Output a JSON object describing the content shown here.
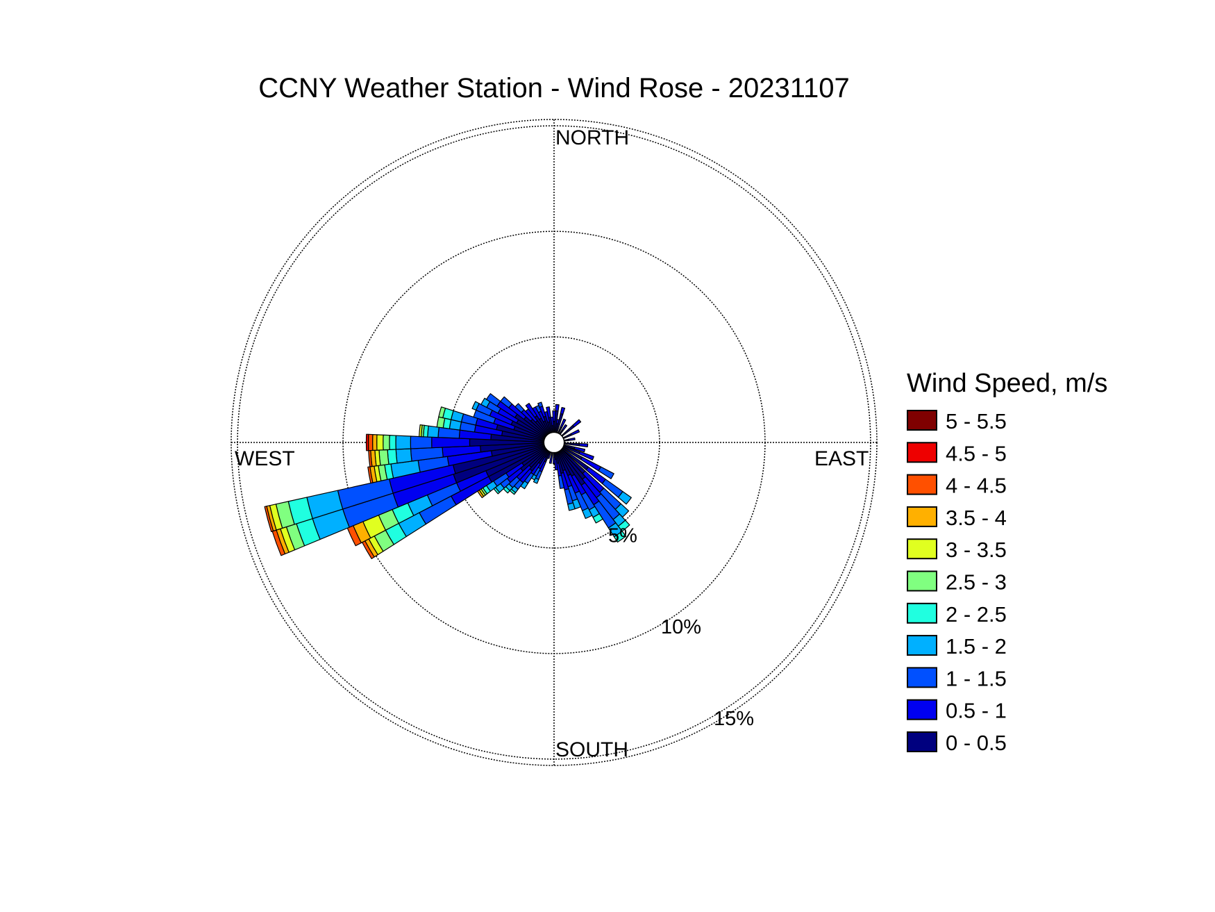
{
  "chart_data": {
    "type": "wind-rose",
    "title": "CCNY Weather Station - Wind Rose - 20231107",
    "direction_labels": {
      "north": "NORTH",
      "east": "EAST",
      "south": "SOUTH",
      "west": "WEST"
    },
    "ring_percentages": [
      5,
      10,
      15
    ],
    "ring_labels": [
      "5%",
      "10%",
      "15%"
    ],
    "max_radius_percent": 15.3,
    "calm_circle_percent": 0.45,
    "grid": true,
    "legend": {
      "title": "Wind Speed, m/s",
      "position": "right",
      "bins": [
        {
          "label": "5 - 5.5",
          "color": "#7f0000"
        },
        {
          "label": "4.5 - 5",
          "color": "#ee0000"
        },
        {
          "label": "4 - 4.5",
          "color": "#ff5000"
        },
        {
          "label": "3.5 - 4",
          "color": "#ffb000"
        },
        {
          "label": "3 - 3.5",
          "color": "#e0ff20"
        },
        {
          "label": "2.5 - 3",
          "color": "#80ff80"
        },
        {
          "label": "2 - 2.5",
          "color": "#20ffe0"
        },
        {
          "label": "1.5 - 2",
          "color": "#00b0ff"
        },
        {
          "label": "1 - 1.5",
          "color": "#0050ff"
        },
        {
          "label": "0.5 - 1",
          "color": "#0000f0"
        },
        {
          "label": "0 - 0.5",
          "color": "#00007f"
        }
      ]
    },
    "bin_order_inner_to_outer": [
      "0 - 0.5",
      "0.5 - 1",
      "1 - 1.5",
      "1.5 - 2",
      "2 - 2.5",
      "2.5 - 3",
      "3 - 3.5",
      "3.5 - 4",
      "4 - 4.5",
      "4.5 - 5",
      "5 - 5.5"
    ],
    "sector_width_deg": 5,
    "sectors": [
      {
        "direction_deg": 0,
        "cumulative_percent": [
          1.0,
          1.5
        ]
      },
      {
        "direction_deg": 5,
        "cumulative_percent": [
          1.5,
          1.8
        ]
      },
      {
        "direction_deg": 10,
        "cumulative_percent": [
          0.9,
          1.1
        ]
      },
      {
        "direction_deg": 15,
        "cumulative_percent": [
          1.4,
          1.7
        ]
      },
      {
        "direction_deg": 25,
        "cumulative_percent": [
          0.8,
          1.2
        ]
      },
      {
        "direction_deg": 35,
        "cumulative_percent": [
          0.7,
          1.0
        ]
      },
      {
        "direction_deg": 50,
        "cumulative_percent": [
          1.2,
          1.6
        ]
      },
      {
        "direction_deg": 65,
        "cumulative_percent": [
          0.9,
          1.3
        ]
      },
      {
        "direction_deg": 80,
        "cumulative_percent": [
          0.7,
          1.0
        ]
      },
      {
        "direction_deg": 95,
        "cumulative_percent": [
          1.2,
          1.6
        ]
      },
      {
        "direction_deg": 105,
        "cumulative_percent": [
          1.0,
          1.5
        ]
      },
      {
        "direction_deg": 112,
        "cumulative_percent": [
          1.3,
          2.0
        ]
      },
      {
        "direction_deg": 120,
        "cumulative_percent": [
          1.5,
          2.5,
          3.2
        ]
      },
      {
        "direction_deg": 128,
        "cumulative_percent": [
          2.0,
          3.0,
          4.0,
          4.5
        ]
      },
      {
        "direction_deg": 135,
        "cumulative_percent": [
          2.0,
          3.2,
          4.3,
          4.8
        ]
      },
      {
        "direction_deg": 140,
        "cumulative_percent": [
          2.2,
          3.3,
          4.6,
          5.0,
          5.3
        ]
      },
      {
        "direction_deg": 145,
        "cumulative_percent": [
          2.4,
          3.5,
          4.8,
          5.3,
          5.6
        ]
      },
      {
        "direction_deg": 150,
        "cumulative_percent": [
          1.8,
          2.8,
          3.6,
          4.0,
          4.3
        ]
      },
      {
        "direction_deg": 155,
        "cumulative_percent": [
          1.7,
          2.6,
          3.5,
          3.9
        ]
      },
      {
        "direction_deg": 160,
        "cumulative_percent": [
          1.4,
          2.2,
          2.9,
          3.3
        ]
      },
      {
        "direction_deg": 165,
        "cumulative_percent": [
          1.5,
          2.3,
          3.0,
          3.3
        ]
      },
      {
        "direction_deg": 170,
        "cumulative_percent": [
          1.0,
          1.6,
          2.2
        ]
      },
      {
        "direction_deg": 175,
        "cumulative_percent": [
          0.8,
          1.3
        ]
      },
      {
        "direction_deg": 180,
        "cumulative_percent": [
          0.7,
          1.0
        ]
      },
      {
        "direction_deg": 190,
        "cumulative_percent": [
          0.6,
          1.0
        ]
      },
      {
        "direction_deg": 200,
        "cumulative_percent": [
          0.5,
          0.8
        ]
      },
      {
        "direction_deg": 205,
        "cumulative_percent": [
          1.0,
          1.5,
          1.9,
          2.1
        ]
      },
      {
        "direction_deg": 210,
        "cumulative_percent": [
          0.8,
          1.4,
          1.8,
          2.0
        ]
      },
      {
        "direction_deg": 215,
        "cumulative_percent": [
          1.2,
          1.8,
          2.3,
          2.6
        ]
      },
      {
        "direction_deg": 220,
        "cumulative_percent": [
          1.7,
          2.4,
          2.8,
          3.0,
          3.1
        ]
      },
      {
        "direction_deg": 225,
        "cumulative_percent": [
          1.6,
          2.4,
          2.9,
          3.1,
          3.25
        ]
      },
      {
        "direction_deg": 230,
        "cumulative_percent": [
          2.0,
          2.8,
          3.2,
          3.5,
          3.6
        ]
      },
      {
        "direction_deg": 235,
        "cumulative_percent": [
          1.8,
          2.7,
          3.4,
          3.8,
          4.0,
          4.1,
          4.2,
          4.3
        ]
      },
      {
        "direction_deg": 240,
        "cumulative_percent": [
          3.5,
          5.5,
          7.2,
          8.3,
          9.0,
          9.6,
          9.9,
          10.1,
          10.25
        ]
      },
      {
        "direction_deg": 245,
        "cumulative_percent": [
          3.5,
          5.0,
          6.5,
          7.5,
          8.3,
          9.0,
          9.8,
          10.3,
          10.6
        ]
      },
      {
        "direction_deg": 250,
        "cumulative_percent": [
          5.0,
          8.0,
          10.5,
          12.0,
          12.8,
          13.3,
          13.6,
          13.8,
          14.0
        ]
      },
      {
        "direction_deg": 255,
        "cumulative_percent": [
          4.9,
          8.0,
          10.5,
          12.0,
          12.9,
          13.5,
          13.8,
          13.95,
          14.05
        ]
      },
      {
        "direction_deg": 260,
        "cumulative_percent": [
          3.0,
          5.1,
          6.5,
          7.8,
          8.1,
          8.4,
          8.6,
          8.8,
          8.9
        ]
      },
      {
        "direction_deg": 265,
        "cumulative_percent": [
          3.5,
          5.3,
          6.8,
          7.5,
          7.9,
          8.3,
          8.5,
          8.7,
          8.8
        ]
      },
      {
        "direction_deg": 270,
        "cumulative_percent": [
          4.0,
          5.8,
          6.8,
          7.5,
          7.8,
          8.1,
          8.4,
          8.6,
          8.8,
          8.9
        ]
      },
      {
        "direction_deg": 275,
        "cumulative_percent": [
          3.0,
          4.5,
          5.5,
          6.0,
          6.2,
          6.3,
          6.4
        ]
      },
      {
        "direction_deg": 280,
        "cumulative_percent": [
          2.5,
          3.8,
          4.5,
          5.0,
          5.3,
          5.6
        ]
      },
      {
        "direction_deg": 285,
        "cumulative_percent": [
          2.8,
          3.8,
          4.5,
          5.0,
          5.4,
          5.6
        ]
      },
      {
        "direction_deg": 290,
        "cumulative_percent": [
          2.0,
          3.0,
          4.0
        ]
      },
      {
        "direction_deg": 295,
        "cumulative_percent": [
          2.2,
          3.3,
          4.0,
          4.2
        ]
      },
      {
        "direction_deg": 300,
        "cumulative_percent": [
          2.0,
          3.0,
          3.6,
          3.9
        ]
      },
      {
        "direction_deg": 305,
        "cumulative_percent": [
          2.2,
          3.2,
          3.8
        ]
      },
      {
        "direction_deg": 310,
        "cumulative_percent": [
          1.8,
          2.7,
          3.2
        ]
      },
      {
        "direction_deg": 315,
        "cumulative_percent": [
          1.5,
          2.1,
          2.5
        ]
      },
      {
        "direction_deg": 320,
        "cumulative_percent": [
          1.3,
          2.0
        ]
      },
      {
        "direction_deg": 325,
        "cumulative_percent": [
          1.5,
          2.2
        ]
      },
      {
        "direction_deg": 330,
        "cumulative_percent": [
          1.3,
          1.9
        ]
      },
      {
        "direction_deg": 335,
        "cumulative_percent": [
          1.1,
          1.6,
          1.9
        ]
      },
      {
        "direction_deg": 340,
        "cumulative_percent": [
          1.3,
          1.8,
          2.0
        ]
      },
      {
        "direction_deg": 345,
        "cumulative_percent": [
          1.0,
          1.5
        ]
      },
      {
        "direction_deg": 350,
        "cumulative_percent": [
          1.2,
          1.7
        ]
      },
      {
        "direction_deg": 355,
        "cumulative_percent": [
          0.8,
          1.2
        ]
      }
    ]
  }
}
